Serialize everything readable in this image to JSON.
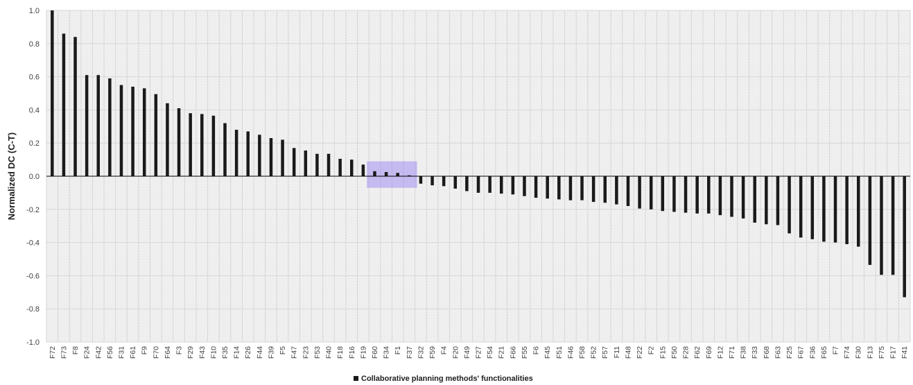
{
  "chart_data": {
    "type": "bar",
    "title": "",
    "ylabel": "Normalized DC (C-T)",
    "xlabel": "",
    "ylim": [
      -1.0,
      1.0
    ],
    "yticks": [
      "1.0",
      "0.8",
      "0.6",
      "0.4",
      "0.2",
      "0.0",
      "-0.2",
      "-0.4",
      "-0.6",
      "-0.8",
      "-1.0"
    ],
    "grid": true,
    "legend": {
      "position": "bottom-center",
      "label": "Collaborative planning methods' functionalities"
    },
    "highlight": {
      "from": "F60",
      "to": "F37",
      "color": "#a48ff0"
    },
    "bar_color": "#1a1a1a",
    "categories": [
      "F72",
      "F73",
      "F8",
      "F24",
      "F42",
      "F56",
      "F31",
      "F61",
      "F9",
      "F70",
      "F64",
      "F3",
      "F29",
      "F43",
      "F10",
      "F35",
      "F14",
      "F26",
      "F44",
      "F39",
      "F5",
      "F47",
      "F23",
      "F53",
      "F40",
      "F18",
      "F16",
      "F19",
      "F60",
      "F34",
      "F1",
      "F37",
      "F32",
      "F59",
      "F4",
      "F20",
      "F49",
      "F27",
      "F54",
      "F21",
      "F66",
      "F55",
      "F6",
      "F45",
      "F51",
      "F46",
      "F58",
      "F52",
      "F57",
      "F11",
      "F48",
      "F22",
      "F2",
      "F15",
      "F50",
      "F28",
      "F62",
      "F69",
      "F12",
      "F71",
      "F38",
      "F33",
      "F68",
      "F63",
      "F25",
      "F67",
      "F36",
      "F65",
      "F7",
      "F74",
      "F30",
      "F13",
      "F75",
      "F17",
      "F41"
    ],
    "values": [
      1.0,
      0.86,
      0.84,
      0.61,
      0.61,
      0.59,
      0.55,
      0.54,
      0.53,
      0.495,
      0.44,
      0.41,
      0.38,
      0.375,
      0.365,
      0.32,
      0.28,
      0.27,
      0.25,
      0.23,
      0.22,
      0.17,
      0.155,
      0.135,
      0.135,
      0.105,
      0.1,
      0.07,
      0.03,
      0.025,
      0.02,
      0.005,
      -0.045,
      -0.055,
      -0.06,
      -0.075,
      -0.09,
      -0.1,
      -0.1,
      -0.105,
      -0.11,
      -0.12,
      -0.13,
      -0.135,
      -0.14,
      -0.145,
      -0.145,
      -0.155,
      -0.16,
      -0.17,
      -0.18,
      -0.195,
      -0.2,
      -0.21,
      -0.215,
      -0.22,
      -0.225,
      -0.225,
      -0.235,
      -0.245,
      -0.255,
      -0.28,
      -0.29,
      -0.295,
      -0.345,
      -0.37,
      -0.38,
      -0.395,
      -0.4,
      -0.41,
      -0.425,
      -0.535,
      -0.595,
      -0.595,
      -0.73
    ]
  }
}
